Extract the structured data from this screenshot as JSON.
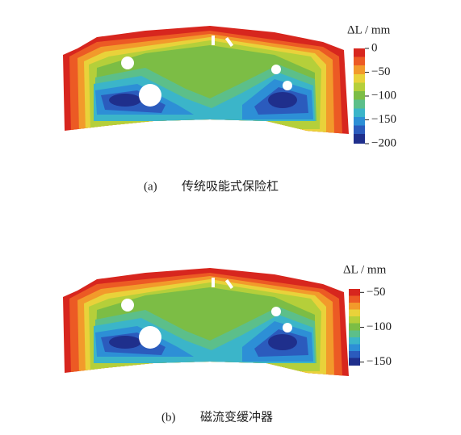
{
  "panels": [
    {
      "colorbar": {
        "label": "ΔL / mm",
        "lim": [
          -200,
          0
        ],
        "ticks": [
          0,
          {
            "value": -50,
            "label": "−50"
          },
          {
            "value": -100,
            "label": "−100"
          },
          {
            "value": -150,
            "label": "−150"
          },
          {
            "value": -200,
            "label": "−200"
          }
        ]
      },
      "caption": {
        "label": "(a)",
        "text": "传统吸能式保险杠"
      }
    },
    {
      "colorbar": {
        "label": "ΔL / mm",
        "lim": [
          -155,
          -45
        ],
        "ticks": [
          {
            "value": -50,
            "label": "−50"
          },
          {
            "value": -100,
            "label": "−100"
          },
          {
            "value": -150,
            "label": "−150"
          }
        ]
      },
      "caption": {
        "label": "(b)",
        "text": "磁流变缓冲器"
      }
    }
  ]
}
